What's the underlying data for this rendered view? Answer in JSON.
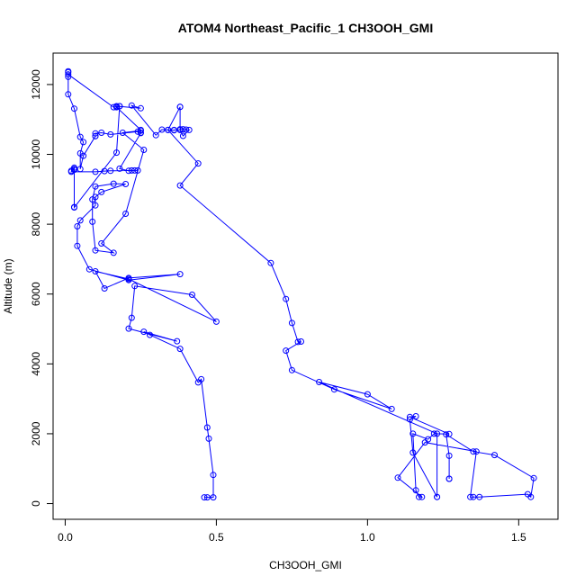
{
  "chart_data": {
    "type": "line",
    "title": "ATOM4 Northeast_Pacific_1 CH3OOH_GMI",
    "xlabel": "CH3OOH_GMI",
    "ylabel": "Altitude (m)",
    "xlim": [
      -0.04,
      1.63
    ],
    "ylim": [
      -450,
      12900
    ],
    "xticks": [
      0.0,
      0.5,
      1.0,
      1.5
    ],
    "xtick_labels": [
      "0.0",
      "0.5",
      "1.0",
      "1.5"
    ],
    "yticks": [
      0,
      2000,
      4000,
      6000,
      8000,
      10000,
      12000
    ],
    "ytick_labels": [
      "0",
      "2000",
      "4000",
      "6000",
      "8000",
      "10000",
      "12000"
    ],
    "grid": false,
    "color": "#0000ff",
    "marker": "open-circle",
    "series": [
      {
        "values": [
          [
            0.46,
            180
          ],
          [
            0.47,
            180
          ],
          [
            0.49,
            180
          ],
          [
            0.49,
            820
          ],
          [
            0.475,
            1860
          ],
          [
            0.47,
            2180
          ],
          [
            0.45,
            3560
          ],
          [
            0.44,
            3470
          ],
          [
            0.38,
            4430
          ],
          [
            0.28,
            4830
          ],
          [
            0.26,
            4920
          ],
          [
            0.37,
            4650
          ],
          [
            0.21,
            5010
          ],
          [
            0.22,
            5320
          ],
          [
            0.23,
            6230
          ],
          [
            0.42,
            5980
          ],
          [
            0.5,
            5210
          ],
          [
            0.21,
            6430
          ],
          [
            0.1,
            6650
          ],
          [
            0.13,
            6160
          ],
          [
            0.21,
            6460
          ],
          [
            0.38,
            6570
          ],
          [
            0.21,
            6400
          ],
          [
            0.08,
            6710
          ],
          [
            0.04,
            7380
          ],
          [
            0.04,
            7940
          ],
          [
            0.05,
            8110
          ],
          [
            0.1,
            8540
          ],
          [
            0.1,
            8780
          ],
          [
            0.12,
            8920
          ],
          [
            0.2,
            9150
          ],
          [
            0.16,
            9160
          ],
          [
            0.1,
            9080
          ],
          [
            0.09,
            8710
          ],
          [
            0.09,
            8070
          ],
          [
            0.1,
            7250
          ],
          [
            0.16,
            7180
          ],
          [
            0.12,
            7450
          ],
          [
            0.2,
            8300
          ],
          [
            0.26,
            10130
          ],
          [
            0.19,
            10620
          ],
          [
            0.25,
            10680
          ],
          [
            0.24,
            10650
          ],
          [
            0.15,
            10570
          ],
          [
            0.12,
            10620
          ],
          [
            0.1,
            10600
          ],
          [
            0.1,
            10520
          ],
          [
            0.1,
            10520
          ],
          [
            0.06,
            9960
          ],
          [
            0.05,
            9580
          ],
          [
            0.05,
            10030
          ],
          [
            0.06,
            10350
          ],
          [
            0.05,
            10500
          ],
          [
            0.03,
            11310
          ],
          [
            0.01,
            11720
          ],
          [
            0.01,
            12220
          ],
          [
            0.01,
            12350
          ],
          [
            0.01,
            12380
          ],
          [
            0.01,
            12290
          ],
          [
            0.16,
            11350
          ],
          [
            0.17,
            11370
          ],
          [
            0.17,
            11370
          ],
          [
            0.18,
            11380
          ],
          [
            0.17,
            11350
          ],
          [
            0.25,
            10700
          ],
          [
            0.25,
            10620
          ],
          [
            0.25,
            10610
          ],
          [
            0.18,
            9590
          ],
          [
            0.21,
            9530
          ],
          [
            0.23,
            9540
          ],
          [
            0.24,
            9540
          ],
          [
            0.22,
            9540
          ],
          [
            0.15,
            9530
          ],
          [
            0.13,
            9520
          ],
          [
            0.1,
            9500
          ],
          [
            0.02,
            9500
          ],
          [
            0.03,
            9580
          ],
          [
            0.03,
            9560
          ],
          [
            0.02,
            9530
          ],
          [
            0.03,
            9620
          ],
          [
            0.03,
            8490
          ],
          [
            0.03,
            8480
          ],
          [
            0.17,
            10050
          ],
          [
            0.18,
            11380
          ],
          [
            0.17,
            11380
          ],
          [
            0.25,
            11320
          ],
          [
            0.22,
            11400
          ],
          [
            0.3,
            10550
          ],
          [
            0.32,
            10710
          ],
          [
            0.34,
            10700
          ],
          [
            0.38,
            11360
          ],
          [
            0.38,
            11360
          ],
          [
            0.38,
            10720
          ],
          [
            0.39,
            10720
          ],
          [
            0.4,
            10710
          ],
          [
            0.41,
            10700
          ],
          [
            0.39,
            10530
          ],
          [
            0.38,
            10700
          ],
          [
            0.36,
            10700
          ],
          [
            0.36,
            10690
          ],
          [
            0.34,
            10700
          ],
          [
            0.44,
            9740
          ],
          [
            0.38,
            9110
          ],
          [
            0.68,
            6890
          ],
          [
            0.73,
            5860
          ],
          [
            0.75,
            5170
          ],
          [
            0.77,
            4630
          ],
          [
            0.78,
            4640
          ],
          [
            0.73,
            4380
          ],
          [
            0.75,
            3820
          ],
          [
            0.89,
            3270
          ],
          [
            1.08,
            2710
          ],
          [
            1.0,
            3130
          ],
          [
            0.84,
            3480
          ],
          [
            1.23,
            2000
          ],
          [
            1.23,
            190
          ],
          [
            1.23,
            190
          ],
          [
            1.15,
            1460
          ],
          [
            1.14,
            2410
          ],
          [
            1.16,
            2500
          ],
          [
            1.14,
            2480
          ],
          [
            1.27,
            1990
          ],
          [
            1.22,
            2000
          ],
          [
            1.2,
            1840
          ],
          [
            1.15,
            2000
          ],
          [
            1.16,
            380
          ],
          [
            1.17,
            190
          ],
          [
            1.18,
            190
          ],
          [
            1.1,
            740
          ],
          [
            1.19,
            1750
          ],
          [
            1.36,
            1490
          ],
          [
            1.34,
            190
          ],
          [
            1.35,
            190
          ],
          [
            1.37,
            190
          ],
          [
            1.53,
            270
          ],
          [
            1.54,
            190
          ],
          [
            1.55,
            730
          ],
          [
            1.42,
            1390
          ],
          [
            1.35,
            1490
          ],
          [
            1.26,
            1980
          ],
          [
            1.27,
            1370
          ],
          [
            1.27,
            710
          ],
          [
            1.27,
            710
          ]
        ]
      }
    ]
  }
}
